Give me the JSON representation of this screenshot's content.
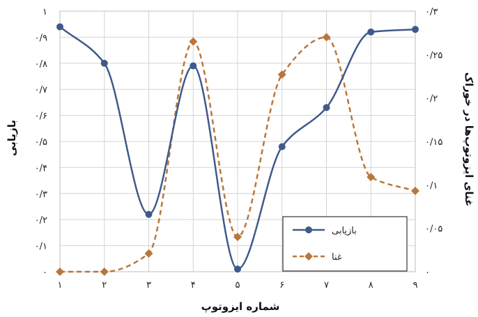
{
  "chart_data": {
    "type": "line",
    "xlabel": "شماره ایزوتوپ",
    "ylabel_left": "بازیابی",
    "ylabel_right": "غنای ایزوتوپ‌ها در خوراک",
    "x_tick_labels": [
      "۱",
      "۲",
      "۳",
      "۴",
      "۵",
      "۶",
      "۷",
      "۸",
      "۹"
    ],
    "y_left_tick_labels": [
      "۰",
      "۰/۱",
      "۰/۲",
      "۰/۳",
      "۰/۴",
      "۰/۵",
      "۰/۶",
      "۰/۷",
      "۰/۸",
      "۰/۹",
      "۱"
    ],
    "y_right_tick_labels": [
      "۰",
      "۰/۰۵",
      "۰/۱",
      "۰/۱۵",
      "۰/۲",
      "۰/۲۵",
      "۰/۳"
    ],
    "x": [
      1,
      2,
      3,
      4,
      5,
      6,
      7,
      8,
      9
    ],
    "xlim": [
      1,
      9
    ],
    "ylim_left": [
      0,
      1
    ],
    "ylim_right": [
      0,
      0.3
    ],
    "grid": true,
    "legend_position": "bottom-right",
    "series": [
      {
        "name": "بازیابی",
        "axis": "left",
        "style": "solid",
        "marker": "circle",
        "color": "#3f5a8a",
        "values": [
          0.94,
          0.8,
          0.22,
          0.79,
          0.01,
          0.48,
          0.63,
          0.92,
          0.93
        ]
      },
      {
        "name": "غنا",
        "axis": "right",
        "style": "dashed",
        "marker": "diamond",
        "color": "#b9763a",
        "values": [
          0.0,
          0.0,
          0.021,
          0.265,
          0.04,
          0.227,
          0.27,
          0.109,
          0.093
        ]
      }
    ]
  }
}
